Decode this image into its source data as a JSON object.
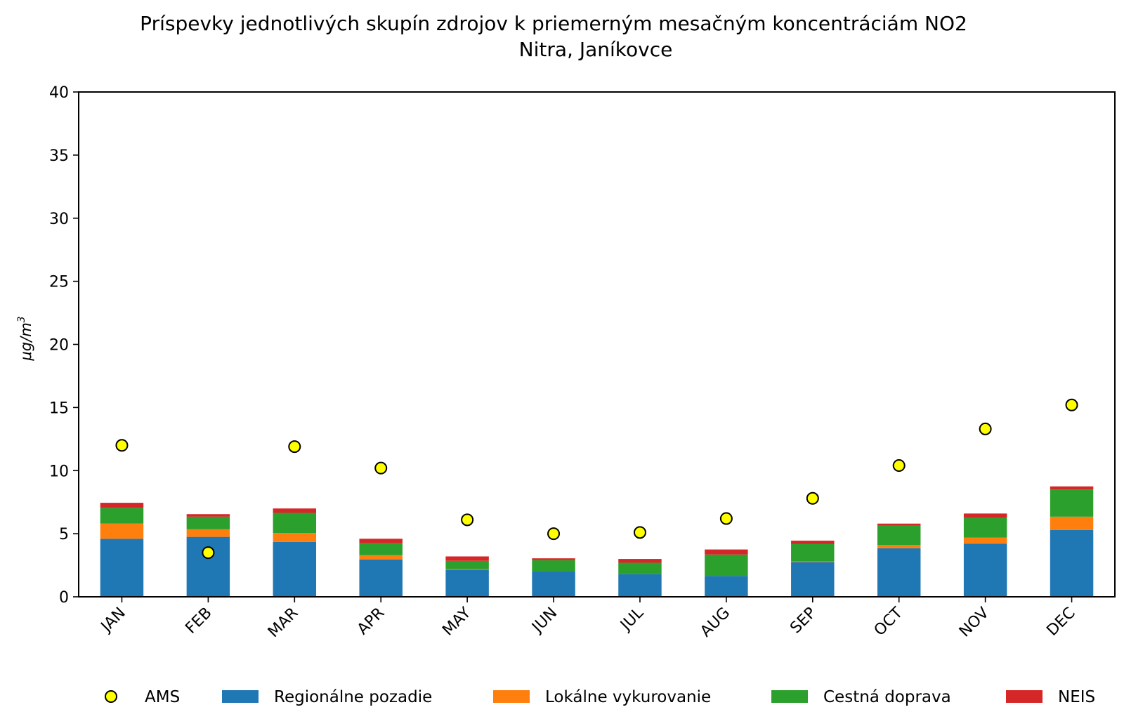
{
  "chart_data": {
    "type": "bar",
    "stacked": true,
    "title": "Príspevky jednotlivých skupín zdrojov k priemerným mesačným koncentráciám NO2",
    "subtitle": "Nitra, Janíkovce",
    "xlabel": "",
    "ylabel_base": "μg/m",
    "ylabel_sup": "3",
    "ylim": [
      0,
      40
    ],
    "yticks": [
      0,
      5,
      10,
      15,
      20,
      25,
      30,
      35,
      40
    ],
    "categories": [
      "JAN",
      "FEB",
      "MAR",
      "APR",
      "MAY",
      "JUN",
      "JUL",
      "AUG",
      "SEP",
      "OCT",
      "NOV",
      "DEC"
    ],
    "series": [
      {
        "name": "Regionálne pozadie",
        "color": "#1f77b4",
        "values": [
          4.6,
          4.75,
          4.35,
          2.95,
          2.15,
          2.05,
          1.8,
          1.65,
          2.75,
          3.85,
          4.2,
          5.3
        ]
      },
      {
        "name": "Lokálne vykurovanie",
        "color": "#ff7f0e",
        "values": [
          1.2,
          0.6,
          0.7,
          0.35,
          0.05,
          0.0,
          0.0,
          0.0,
          0.05,
          0.25,
          0.5,
          1.05
        ]
      },
      {
        "name": "Cestná doprava",
        "color": "#2ca02c",
        "values": [
          1.25,
          1.0,
          1.6,
          0.95,
          0.65,
          0.85,
          0.9,
          1.7,
          1.4,
          1.55,
          1.55,
          2.15
        ]
      },
      {
        "name": "NEIS",
        "color": "#d62728",
        "values": [
          0.4,
          0.2,
          0.35,
          0.35,
          0.35,
          0.15,
          0.3,
          0.4,
          0.25,
          0.15,
          0.35,
          0.25
        ]
      }
    ],
    "scatter": {
      "name": "AMS",
      "color": "#ffff00",
      "edgecolor": "#000000",
      "values": [
        12.0,
        3.5,
        11.9,
        10.2,
        6.1,
        5.0,
        5.1,
        6.2,
        7.8,
        10.4,
        13.3,
        15.2
      ]
    },
    "legend": {
      "position": "bottom",
      "entries": [
        "AMS",
        "Regionálne pozadie",
        "Lokálne vykurovanie",
        "Cestná doprava",
        "NEIS"
      ]
    },
    "grid": false
  }
}
